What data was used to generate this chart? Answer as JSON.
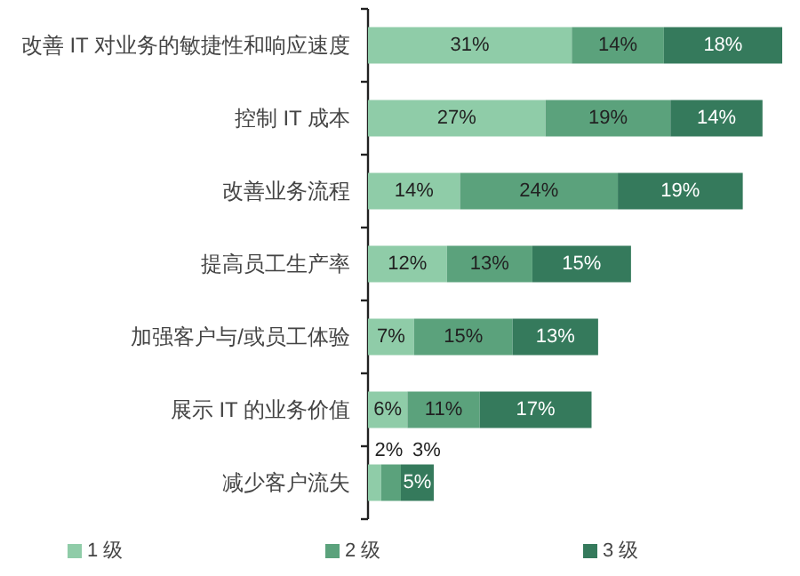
{
  "chart_data": {
    "type": "bar",
    "orientation": "horizontal",
    "stacked": true,
    "legend": "bottom",
    "categories": [
      "改善 IT 对业务的敏捷性和响应速度",
      "控制 IT 成本",
      "改善业务流程",
      "提高员工生产率",
      "加强客户与/或员工体验",
      "展示 IT 的业务价值",
      "减少客户流失"
    ],
    "series": [
      {
        "name": "1 级",
        "color": "#8fcca8",
        "values": [
          31,
          27,
          14,
          12,
          7,
          6,
          2
        ],
        "value_labels": [
          "31%",
          "27%",
          "14%",
          "12%",
          "7%",
          "6%",
          "2%"
        ]
      },
      {
        "name": "2 级",
        "color": "#5ba27c",
        "values": [
          14,
          19,
          24,
          13,
          15,
          11,
          3
        ],
        "value_labels": [
          "14%",
          "19%",
          "24%",
          "13%",
          "15%",
          "11%",
          "3%"
        ]
      },
      {
        "name": "3 级",
        "color": "#357a5c",
        "values": [
          18,
          14,
          19,
          15,
          13,
          17,
          5
        ],
        "value_labels": [
          "18%",
          "14%",
          "19%",
          "15%",
          "13%",
          "17%",
          "5%"
        ]
      }
    ]
  }
}
